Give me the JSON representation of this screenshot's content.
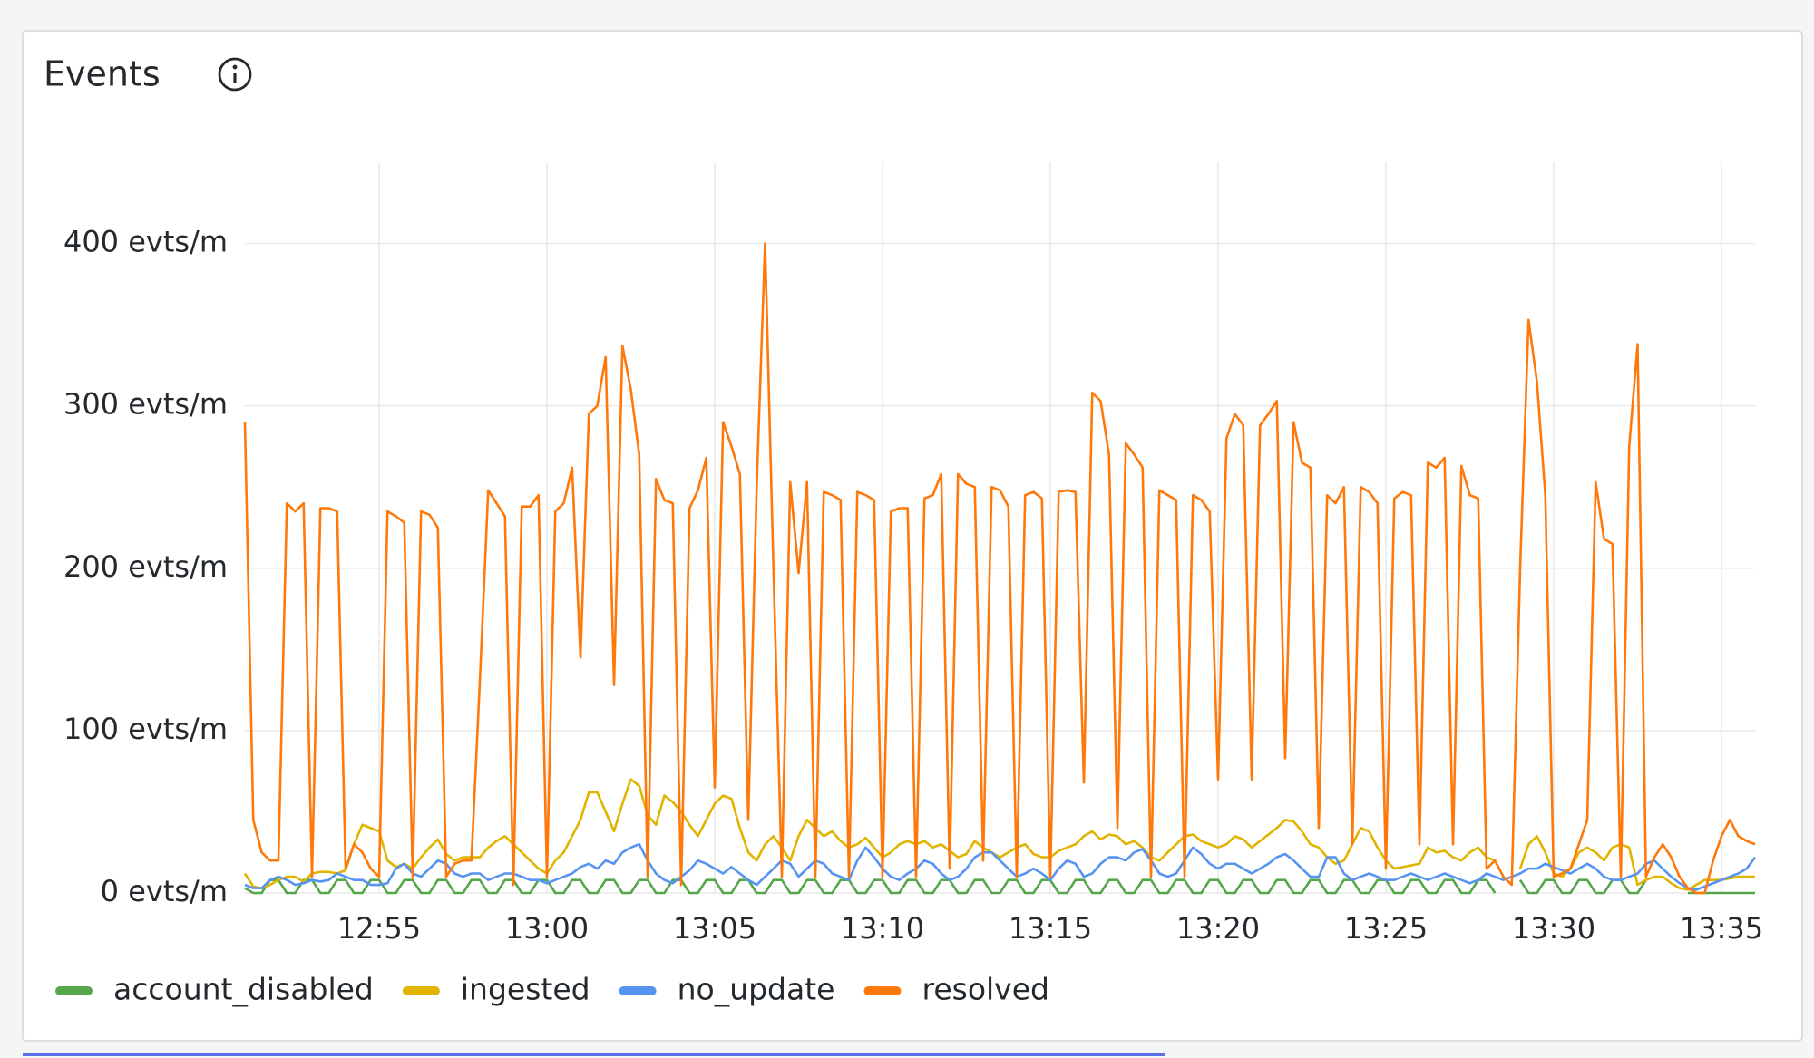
{
  "chart_data": {
    "type": "line",
    "title": "Events",
    "x": [
      771,
      771.25,
      771.5,
      771.75,
      772,
      772.25,
      772.5,
      772.75,
      773,
      773.25,
      773.5,
      773.75,
      774,
      774.25,
      774.5,
      774.75,
      775,
      775.25,
      775.5,
      775.75,
      776,
      776.25,
      776.5,
      776.75,
      777,
      777.25,
      777.5,
      777.75,
      778,
      778.25,
      778.5,
      778.75,
      779,
      779.25,
      779.5,
      779.75,
      780,
      780.25,
      780.5,
      780.75,
      781,
      781.25,
      781.5,
      781.75,
      782,
      782.25,
      782.5,
      782.75,
      783,
      783.25,
      783.5,
      783.75,
      784,
      784.25,
      784.5,
      784.75,
      785,
      785.25,
      785.5,
      785.75,
      786,
      786.25,
      786.5,
      786.75,
      787,
      787.25,
      787.5,
      787.75,
      788,
      788.25,
      788.5,
      788.75,
      789,
      789.25,
      789.5,
      789.75,
      790,
      790.25,
      790.5,
      790.75,
      791,
      791.25,
      791.5,
      791.75,
      792,
      792.25,
      792.5,
      792.75,
      793,
      793.25,
      793.5,
      793.75,
      794,
      794.25,
      794.5,
      794.75,
      795,
      795.25,
      795.5,
      795.75,
      796,
      796.25,
      796.5,
      796.75,
      797,
      797.25,
      797.5,
      797.75,
      798,
      798.25,
      798.5,
      798.75,
      799,
      799.25,
      799.5,
      799.75,
      800,
      800.25,
      800.5,
      800.75,
      801,
      801.25,
      801.5,
      801.75,
      802,
      802.25,
      802.5,
      802.75,
      803,
      803.25,
      803.5,
      803.75,
      804,
      804.25,
      804.5,
      804.75,
      805,
      805.25,
      805.5,
      805.75,
      806,
      806.25,
      806.5,
      806.75,
      807,
      807.25,
      807.5,
      807.75,
      808,
      808.25,
      808.5,
      808.75,
      809,
      809.25,
      809.5,
      809.75,
      810,
      810.25,
      810.5,
      810.75,
      811,
      811.25,
      811.5,
      811.75,
      812,
      812.25,
      812.5,
      812.75,
      813,
      813.25,
      813.5,
      813.75,
      814,
      814.25,
      814.5,
      814.75,
      815,
      815.25,
      815.5,
      815.75,
      816
    ],
    "series": [
      {
        "name": "account_disabled",
        "color": "#56a64b",
        "values": [
          3,
          0,
          0,
          8,
          8,
          0,
          0,
          8,
          8,
          0,
          0,
          8,
          8,
          0,
          0,
          8,
          8,
          0,
          0,
          8,
          8,
          0,
          0,
          8,
          8,
          0,
          0,
          8,
          8,
          0,
          0,
          8,
          8,
          0,
          0,
          8,
          8,
          0,
          0,
          8,
          8,
          0,
          0,
          8,
          8,
          0,
          0,
          8,
          8,
          0,
          0,
          8,
          8,
          0,
          0,
          8,
          8,
          0,
          0,
          8,
          8,
          0,
          0,
          8,
          8,
          0,
          0,
          8,
          8,
          0,
          0,
          8,
          8,
          0,
          0,
          8,
          8,
          0,
          0,
          8,
          8,
          0,
          0,
          8,
          8,
          0,
          0,
          8,
          8,
          0,
          0,
          8,
          8,
          0,
          0,
          8,
          8,
          0,
          0,
          8,
          8,
          0,
          0,
          8,
          8,
          0,
          0,
          8,
          8,
          0,
          0,
          8,
          8,
          0,
          0,
          8,
          8,
          0,
          0,
          8,
          8,
          0,
          0,
          8,
          8,
          0,
          0,
          8,
          8,
          0,
          0,
          8,
          8,
          0,
          0,
          8,
          8,
          0,
          0,
          8,
          8,
          0,
          0,
          8,
          8,
          0,
          0,
          8,
          8,
          0,
          null,
          null,
          8,
          0,
          0,
          8,
          8,
          0,
          0,
          8,
          8,
          0,
          0,
          8,
          8,
          0,
          0,
          8,
          null,
          null,
          null,
          null,
          0,
          0,
          0,
          0,
          0,
          0,
          0,
          0,
          0
        ]
      },
      {
        "name": "ingested",
        "color": "#e0b400",
        "values": [
          12,
          4,
          3,
          5,
          8,
          10,
          10,
          7,
          12,
          13,
          13,
          12,
          14,
          30,
          42,
          40,
          38,
          20,
          16,
          18,
          15,
          22,
          28,
          33,
          24,
          20,
          22,
          22,
          22,
          28,
          32,
          35,
          30,
          25,
          20,
          15,
          12,
          20,
          25,
          35,
          45,
          62,
          62,
          50,
          38,
          55,
          70,
          66,
          48,
          42,
          60,
          56,
          50,
          42,
          35,
          45,
          55,
          60,
          58,
          40,
          25,
          20,
          30,
          35,
          28,
          20,
          35,
          45,
          40,
          35,
          38,
          32,
          28,
          30,
          34,
          28,
          22,
          25,
          30,
          32,
          30,
          32,
          28,
          30,
          26,
          22,
          24,
          32,
          28,
          25,
          22,
          25,
          28,
          30,
          24,
          22,
          22,
          26,
          28,
          30,
          35,
          38,
          33,
          36,
          35,
          30,
          32,
          28,
          22,
          20,
          25,
          30,
          35,
          36,
          32,
          30,
          28,
          30,
          35,
          33,
          28,
          32,
          36,
          40,
          45,
          44,
          38,
          30,
          28,
          22,
          18,
          20,
          30,
          40,
          38,
          28,
          20,
          15,
          16,
          17,
          18,
          28,
          25,
          26,
          22,
          20,
          25,
          28,
          22,
          20,
          null,
          null,
          15,
          30,
          35,
          25,
          12,
          10,
          15,
          25,
          28,
          25,
          20,
          28,
          30,
          28,
          5,
          8,
          10,
          10,
          6,
          3,
          2,
          5,
          8,
          8,
          8,
          9,
          10,
          10,
          10
        ]
      },
      {
        "name": "no_update",
        "color": "#5794f2",
        "values": [
          5,
          3,
          3,
          8,
          10,
          8,
          5,
          6,
          8,
          7,
          8,
          12,
          10,
          8,
          8,
          5,
          5,
          6,
          15,
          18,
          12,
          10,
          15,
          20,
          18,
          12,
          10,
          12,
          12,
          8,
          10,
          12,
          12,
          10,
          8,
          8,
          6,
          8,
          10,
          12,
          16,
          18,
          15,
          20,
          18,
          25,
          28,
          30,
          20,
          12,
          8,
          6,
          10,
          14,
          20,
          18,
          15,
          12,
          16,
          12,
          8,
          5,
          10,
          15,
          20,
          18,
          10,
          15,
          20,
          18,
          12,
          10,
          8,
          20,
          28,
          22,
          15,
          10,
          8,
          12,
          15,
          20,
          18,
          12,
          8,
          10,
          15,
          22,
          25,
          25,
          20,
          15,
          10,
          12,
          15,
          12,
          8,
          15,
          20,
          18,
          10,
          12,
          18,
          22,
          22,
          20,
          25,
          27,
          20,
          12,
          10,
          12,
          20,
          28,
          24,
          18,
          15,
          18,
          18,
          15,
          12,
          15,
          18,
          22,
          24,
          20,
          15,
          10,
          10,
          22,
          22,
          12,
          8,
          10,
          12,
          10,
          8,
          8,
          10,
          12,
          10,
          8,
          10,
          12,
          10,
          8,
          6,
          8,
          12,
          10,
          8,
          10,
          12,
          15,
          15,
          18,
          16,
          14,
          12,
          15,
          18,
          15,
          10,
          8,
          8,
          10,
          12,
          18,
          20,
          15,
          10,
          6,
          3,
          2,
          4,
          6,
          8,
          10,
          12,
          15,
          22
        ]
      },
      {
        "name": "resolved",
        "color": "#ff780a",
        "values": [
          290,
          45,
          25,
          20,
          20,
          240,
          235,
          240,
          10,
          237,
          237,
          235,
          15,
          30,
          25,
          15,
          10,
          235,
          232,
          228,
          10,
          235,
          233,
          225,
          10,
          18,
          20,
          20,
          130,
          248,
          240,
          232,
          5,
          238,
          238,
          245,
          10,
          235,
          240,
          262,
          145,
          295,
          300,
          330,
          128,
          337,
          310,
          270,
          10,
          255,
          242,
          240,
          5,
          237,
          248,
          268,
          65,
          290,
          275,
          258,
          45,
          250,
          400,
          200,
          10,
          253,
          197,
          253,
          10,
          247,
          245,
          242,
          10,
          247,
          245,
          242,
          10,
          235,
          237,
          237,
          10,
          243,
          245,
          258,
          15,
          258,
          252,
          250,
          20,
          250,
          248,
          238,
          10,
          245,
          247,
          243,
          10,
          247,
          248,
          247,
          68,
          308,
          303,
          270,
          40,
          277,
          270,
          262,
          10,
          248,
          245,
          242,
          10,
          245,
          242,
          235,
          70,
          280,
          295,
          288,
          70,
          288,
          295,
          303,
          83,
          290,
          265,
          262,
          40,
          245,
          240,
          250,
          30,
          250,
          247,
          240,
          15,
          243,
          247,
          245,
          30,
          265,
          262,
          268,
          30,
          263,
          245,
          243,
          15,
          20,
          10,
          5,
          200,
          353,
          315,
          245,
          10,
          12,
          15,
          30,
          45,
          253,
          218,
          215,
          10,
          275,
          338,
          10,
          22,
          30,
          22,
          10,
          3,
          0,
          0,
          20,
          35,
          45,
          35,
          32,
          30
        ]
      }
    ],
    "xlim": [
      771,
      816
    ],
    "xticks": [
      {
        "value": 775,
        "label": "12:55"
      },
      {
        "value": 780,
        "label": "13:00"
      },
      {
        "value": 785,
        "label": "13:05"
      },
      {
        "value": 790,
        "label": "13:10"
      },
      {
        "value": 795,
        "label": "13:15"
      },
      {
        "value": 800,
        "label": "13:20"
      },
      {
        "value": 805,
        "label": "13:25"
      },
      {
        "value": 810,
        "label": "13:30"
      },
      {
        "value": 815,
        "label": "13:35"
      }
    ],
    "ylim": [
      0,
      450
    ],
    "yticks": [
      {
        "value": 0,
        "label": "0 evts/m"
      },
      {
        "value": 100,
        "label": "100 evts/m"
      },
      {
        "value": 200,
        "label": "200 evts/m"
      },
      {
        "value": 300,
        "label": "300 evts/m"
      },
      {
        "value": 400,
        "label": "400 evts/m"
      }
    ],
    "grid": true,
    "legend": "bottom-left"
  }
}
